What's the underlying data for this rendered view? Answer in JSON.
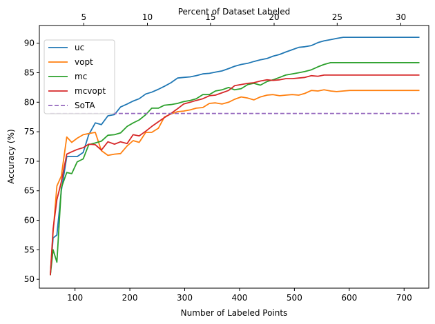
{
  "chart_data": {
    "type": "line",
    "xlabel": "Number of Labeled Points",
    "ylabel": "Accuracy (%)",
    "top_xlabel": "Percent of Dataset Labeled",
    "xlim": [
      35,
      745
    ],
    "ylim": [
      48.5,
      93.0
    ],
    "x_ticks": [
      100,
      200,
      300,
      400,
      500,
      600,
      700
    ],
    "y_ticks": [
      50,
      55,
      60,
      65,
      70,
      75,
      80,
      85,
      90
    ],
    "top_ticks": [
      {
        "label": "5",
        "x": 116
      },
      {
        "label": "10",
        "x": 232
      },
      {
        "label": "15",
        "x": 347
      },
      {
        "label": "20",
        "x": 463
      },
      {
        "label": "25",
        "x": 578
      },
      {
        "label": "30",
        "x": 694
      }
    ],
    "grid": false,
    "legend_position": "upper-left",
    "x": [
      55,
      60,
      67,
      75,
      85,
      94,
      104,
      115,
      125,
      137,
      148,
      160,
      172,
      183,
      195,
      206,
      217,
      229,
      240,
      252,
      263,
      275,
      287,
      298,
      310,
      321,
      333,
      345,
      356,
      368,
      380,
      391,
      403,
      415,
      426,
      438,
      450,
      461,
      473,
      484,
      496,
      508,
      519,
      531,
      543,
      554,
      566,
      577,
      589,
      601,
      612,
      624,
      636,
      647,
      659,
      670,
      682,
      694,
      705,
      717,
      728
    ],
    "series": [
      {
        "name": "uc",
        "color": "#1f77b4",
        "dashed": false,
        "values": [
          50.7,
          57.0,
          57.5,
          65.0,
          70.8,
          70.8,
          70.8,
          71.5,
          74.5,
          76.5,
          76.2,
          77.7,
          77.9,
          79.2,
          79.7,
          80.2,
          80.6,
          81.4,
          81.7,
          82.2,
          82.7,
          83.3,
          84.1,
          84.2,
          84.3,
          84.5,
          84.8,
          84.9,
          85.1,
          85.3,
          85.7,
          86.1,
          86.4,
          86.6,
          86.9,
          87.2,
          87.4,
          87.8,
          88.1,
          88.5,
          88.9,
          89.3,
          89.4,
          89.6,
          90.1,
          90.4,
          90.6,
          90.8,
          91.0,
          91.0,
          91.0,
          91.0,
          91.0,
          91.0,
          91.0,
          91.0,
          91.0,
          91.0,
          91.0,
          91.0,
          91.0
        ]
      },
      {
        "name": "vopt",
        "color": "#ff7f0e",
        "dashed": false,
        "values": [
          50.7,
          58.0,
          65.8,
          67.5,
          74.1,
          73.2,
          73.9,
          74.5,
          74.7,
          74.9,
          71.8,
          71.0,
          71.2,
          71.3,
          72.6,
          73.5,
          73.2,
          74.9,
          74.9,
          75.6,
          77.5,
          78.0,
          78.4,
          78.5,
          78.7,
          79.0,
          79.1,
          79.8,
          79.9,
          79.7,
          80.0,
          80.5,
          80.9,
          80.7,
          80.4,
          80.9,
          81.2,
          81.3,
          81.1,
          81.2,
          81.3,
          81.2,
          81.5,
          82.0,
          81.9,
          82.1,
          81.9,
          81.8,
          81.9,
          82.0,
          82.0,
          82.0,
          82.0,
          82.0,
          82.0,
          82.0,
          82.0,
          82.0,
          82.0,
          82.0,
          82.0
        ]
      },
      {
        "name": "mc",
        "color": "#2ca02c",
        "dashed": false,
        "values": [
          50.7,
          55.0,
          52.9,
          65.5,
          68.1,
          67.9,
          69.9,
          70.4,
          72.8,
          73.1,
          73.4,
          74.4,
          74.5,
          74.8,
          75.9,
          76.5,
          77.0,
          77.9,
          79.0,
          79.0,
          79.5,
          79.6,
          79.8,
          80.1,
          80.3,
          80.6,
          81.3,
          81.3,
          81.9,
          82.1,
          82.5,
          82.1,
          82.3,
          83.0,
          83.2,
          82.9,
          83.5,
          83.8,
          84.2,
          84.6,
          84.8,
          85.0,
          85.2,
          85.5,
          86.0,
          86.4,
          86.7,
          86.7,
          86.7,
          86.7,
          86.7,
          86.7,
          86.7,
          86.7,
          86.7,
          86.7,
          86.7,
          86.7,
          86.7,
          86.7,
          86.7
        ]
      },
      {
        "name": "mcvopt",
        "color": "#d62728",
        "dashed": false,
        "values": [
          50.7,
          58.5,
          63.5,
          66.5,
          71.2,
          71.6,
          72.0,
          72.3,
          72.9,
          72.8,
          71.9,
          73.3,
          72.9,
          73.3,
          73.0,
          74.5,
          74.3,
          75.1,
          75.9,
          76.7,
          77.4,
          78.1,
          78.9,
          79.7,
          80.0,
          80.3,
          80.6,
          81.1,
          81.2,
          81.6,
          82.0,
          82.8,
          83.0,
          83.2,
          83.3,
          83.6,
          83.8,
          83.7,
          83.8,
          84.0,
          84.0,
          84.1,
          84.2,
          84.5,
          84.4,
          84.6,
          84.6,
          84.6,
          84.6,
          84.6,
          84.6,
          84.6,
          84.6,
          84.6,
          84.6,
          84.6,
          84.6,
          84.6,
          84.6,
          84.6,
          84.6
        ]
      },
      {
        "name": "SoTA",
        "color": "#9467bd",
        "dashed": true,
        "constant": 78.1
      }
    ]
  }
}
